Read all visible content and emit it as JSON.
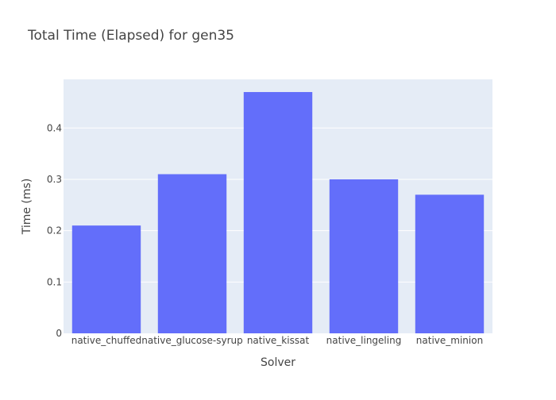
{
  "chart_data": {
    "type": "bar",
    "title": "Total Time (Elapsed) for gen35",
    "xlabel": "Solver",
    "ylabel": "Time (ms)",
    "categories": [
      "native_chuffed",
      "native_glucose-syrup",
      "native_kissat",
      "native_lingeling",
      "native_minion"
    ],
    "values": [
      0.21,
      0.31,
      0.47,
      0.3,
      0.27
    ],
    "ylim": [
      0,
      0.4947
    ],
    "yticks": [
      0,
      0.1,
      0.2,
      0.3,
      0.4
    ],
    "ytick_labels": [
      "0",
      "0.1",
      "0.2",
      "0.3",
      "0.4"
    ],
    "grid": true,
    "legend": "none",
    "colors": {
      "bar": "#636efa",
      "plot_background": "#e5ecf6",
      "grid": "#ffffff",
      "text": "#444444"
    }
  }
}
